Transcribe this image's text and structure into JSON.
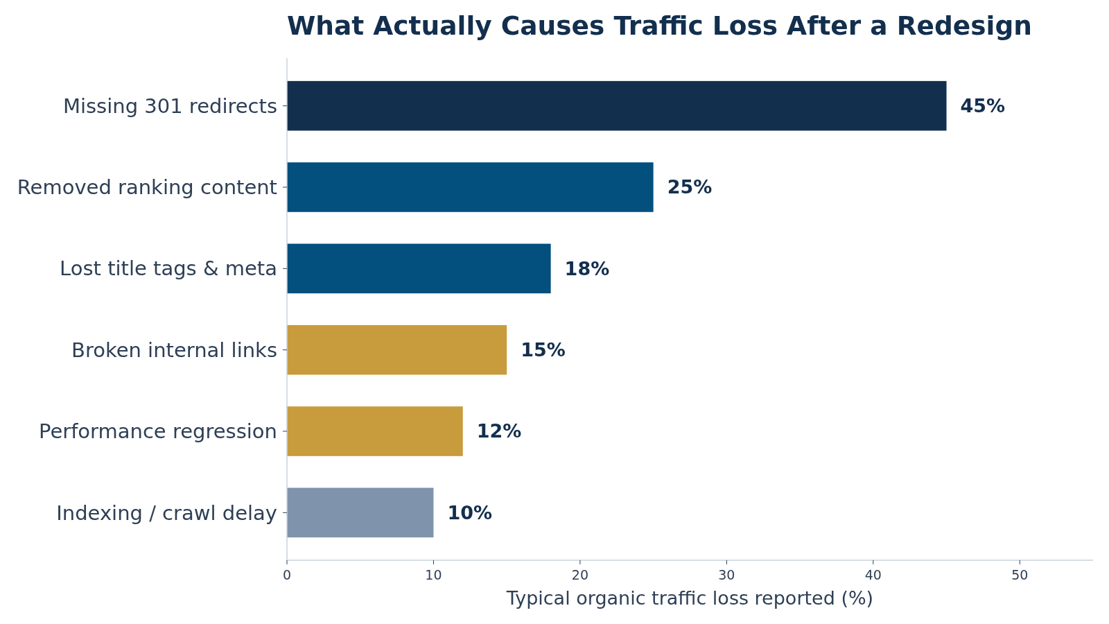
{
  "chart_data": {
    "type": "bar",
    "orientation": "horizontal",
    "title": "What Actually Causes Traffic Loss After a Redesign",
    "xlabel": "Typical organic traffic loss reported (%)",
    "categories": [
      "Missing 301 redirects",
      "Removed ranking content",
      "Lost title tags & meta",
      "Broken internal links",
      "Performance regression",
      "Indexing / crawl delay"
    ],
    "values": [
      45,
      25,
      18,
      15,
      12,
      10
    ],
    "colors": [
      "#132f4e",
      "#034f7e",
      "#034f7e",
      "#c89b3c",
      "#c89b3c",
      "#7f94ac"
    ],
    "value_labels": [
      "45%",
      "25%",
      "18%",
      "15%",
      "12%",
      "10%"
    ],
    "xlim": [
      0,
      55
    ],
    "xticks": [
      0,
      10,
      20,
      30,
      40,
      50
    ]
  }
}
